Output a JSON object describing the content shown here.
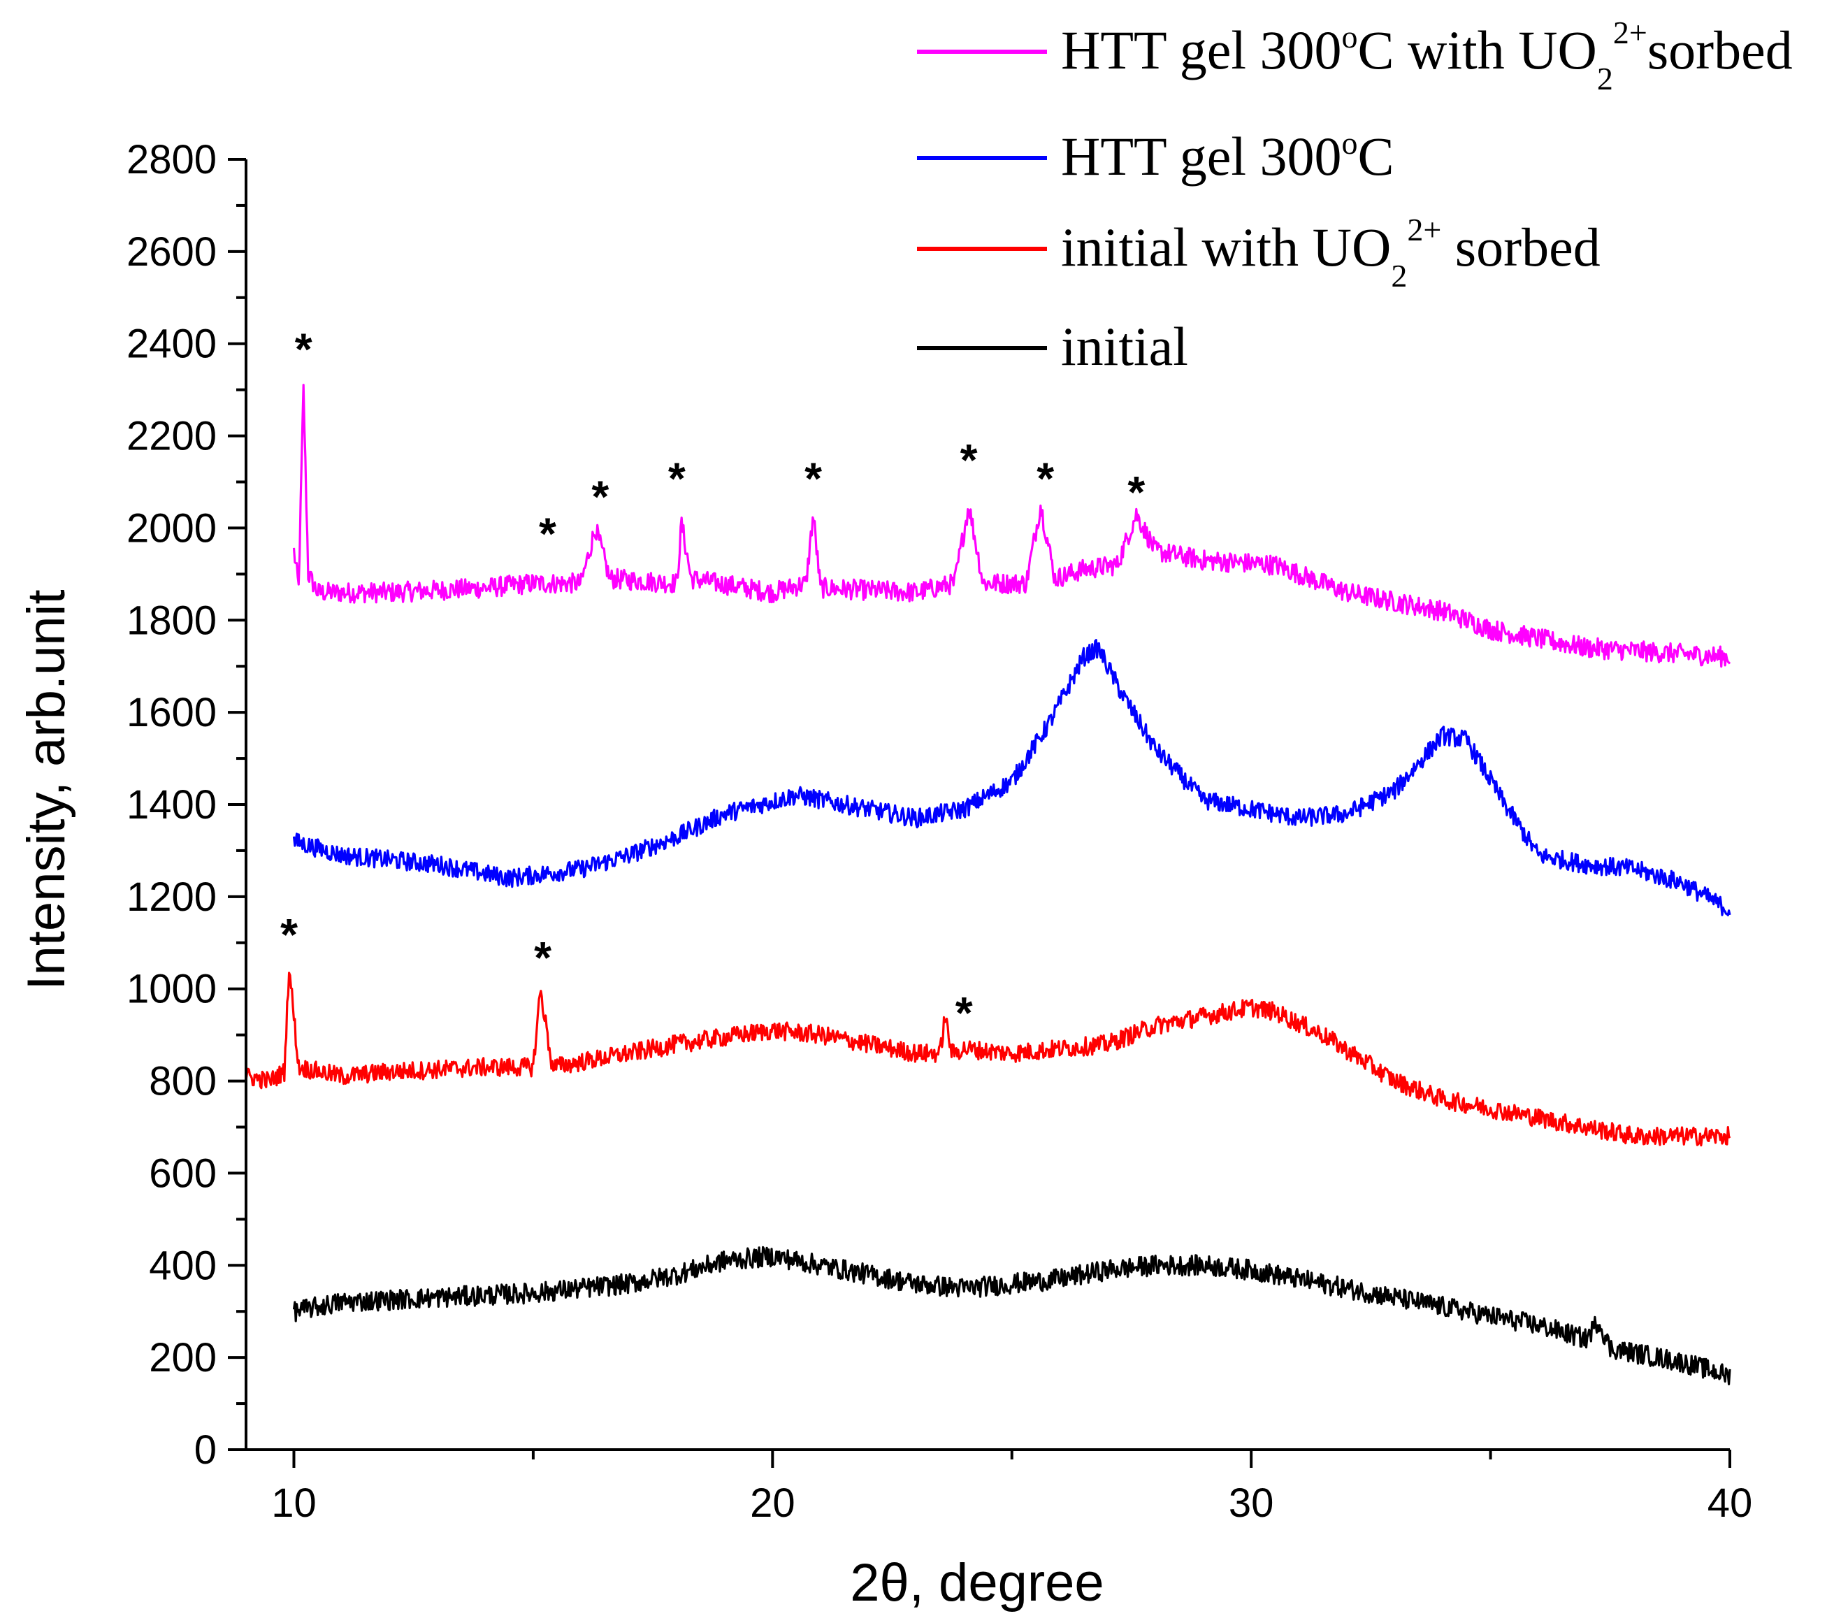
{
  "chart_data": {
    "type": "line",
    "xlabel": "2θ, degree",
    "ylabel": "Intensity, arb.unit",
    "xlim": [
      9,
      40
    ],
    "ylim": [
      0,
      2800
    ],
    "x_ticks": [
      10,
      20,
      30,
      40
    ],
    "y_ticks": [
      0,
      200,
      400,
      600,
      800,
      1000,
      1200,
      1400,
      1600,
      1800,
      2000,
      2200,
      2400,
      2600,
      2800
    ],
    "series": [
      {
        "name": "HTT gel 300oC with UO22+sorbed",
        "legend": {
          "main": "HTT gel 300",
          "deg": "o",
          "after_deg": "C with UO",
          "sub": "2",
          "sup": "2+",
          "tail": "sorbed"
        },
        "color": "#ff00ff",
        "x_start": 10,
        "noise": 22,
        "points": [
          [
            10,
            1950
          ],
          [
            10.1,
            1870
          ],
          [
            10.2,
            2300
          ],
          [
            10.3,
            1900
          ],
          [
            10.5,
            1860
          ],
          [
            12,
            1860
          ],
          [
            14,
            1870
          ],
          [
            15,
            1880
          ],
          [
            16,
            1880
          ],
          [
            16.3,
            2000
          ],
          [
            16.6,
            1890
          ],
          [
            18,
            1880
          ],
          [
            18.1,
            2010
          ],
          [
            18.3,
            1890
          ],
          [
            20,
            1860
          ],
          [
            20.7,
            1880
          ],
          [
            20.85,
            2030
          ],
          [
            21,
            1870
          ],
          [
            23,
            1860
          ],
          [
            23.8,
            1880
          ],
          [
            24.1,
            2050
          ],
          [
            24.4,
            1880
          ],
          [
            25.3,
            1880
          ],
          [
            25.6,
            2050
          ],
          [
            25.9,
            1890
          ],
          [
            26.5,
            1910
          ],
          [
            27.2,
            1920
          ],
          [
            27.6,
            2030
          ],
          [
            28,
            1950
          ],
          [
            29,
            1930
          ],
          [
            30.5,
            1920
          ],
          [
            32,
            1860
          ],
          [
            34,
            1820
          ],
          [
            35,
            1780
          ],
          [
            37,
            1740
          ],
          [
            40,
            1720
          ]
        ]
      },
      {
        "name": "HTT gel 300oC",
        "legend": {
          "main": "HTT gel 300",
          "deg": "o",
          "after_deg": "C",
          "sub": "",
          "sup": "",
          "tail": ""
        },
        "color": "#0000ff",
        "x_start": 10,
        "noise": 20,
        "points": [
          [
            10,
            1320
          ],
          [
            11,
            1290
          ],
          [
            13,
            1270
          ],
          [
            14.5,
            1240
          ],
          [
            16,
            1260
          ],
          [
            17,
            1290
          ],
          [
            18,
            1330
          ],
          [
            19,
            1380
          ],
          [
            20.5,
            1420
          ],
          [
            22,
            1390
          ],
          [
            23,
            1370
          ],
          [
            24,
            1390
          ],
          [
            25,
            1450
          ],
          [
            25.8,
            1580
          ],
          [
            26.5,
            1720
          ],
          [
            26.8,
            1740
          ],
          [
            27.3,
            1640
          ],
          [
            28,
            1520
          ],
          [
            29,
            1410
          ],
          [
            30,
            1390
          ],
          [
            31,
            1370
          ],
          [
            32,
            1380
          ],
          [
            33,
            1430
          ],
          [
            34,
            1550
          ],
          [
            34.5,
            1540
          ],
          [
            35.3,
            1400
          ],
          [
            36,
            1290
          ],
          [
            37,
            1270
          ],
          [
            38,
            1260
          ],
          [
            39,
            1230
          ],
          [
            40,
            1170
          ]
        ]
      },
      {
        "name": "initial with UO22+ sorbed",
        "legend": {
          "main": "initial with UO",
          "deg": "",
          "after_deg": "",
          "sub": "2",
          "sup": "2+",
          "tail": " sorbed"
        },
        "color": "#ff0000",
        "x_start": 9,
        "noise": 20,
        "points": [
          [
            9,
            810
          ],
          [
            9.5,
            800
          ],
          [
            9.8,
            820
          ],
          [
            9.9,
            1050
          ],
          [
            10.1,
            830
          ],
          [
            11,
            810
          ],
          [
            12,
            820
          ],
          [
            14,
            830
          ],
          [
            15,
            830
          ],
          [
            15.15,
            1000
          ],
          [
            15.4,
            830
          ],
          [
            17,
            860
          ],
          [
            18,
            880
          ],
          [
            20,
            910
          ],
          [
            21,
            900
          ],
          [
            22,
            880
          ],
          [
            23,
            860
          ],
          [
            23.5,
            860
          ],
          [
            23.6,
            940
          ],
          [
            23.75,
            860
          ],
          [
            24,
            870
          ],
          [
            25,
            860
          ],
          [
            26,
            870
          ],
          [
            27,
            880
          ],
          [
            28,
            920
          ],
          [
            29,
            940
          ],
          [
            30,
            960
          ],
          [
            30.5,
            950
          ],
          [
            31.5,
            900
          ],
          [
            33,
            800
          ],
          [
            34,
            760
          ],
          [
            36,
            720
          ],
          [
            38,
            680
          ],
          [
            40,
            680
          ]
        ]
      },
      {
        "name": "initial",
        "legend": {
          "main": "initial",
          "deg": "",
          "after_deg": "",
          "sub": "",
          "sup": "",
          "tail": ""
        },
        "color": "#000000",
        "x_start": 10,
        "noise": 22,
        "points": [
          [
            10,
            300
          ],
          [
            11,
            320
          ],
          [
            13,
            330
          ],
          [
            15,
            340
          ],
          [
            17,
            360
          ],
          [
            18,
            380
          ],
          [
            19,
            410
          ],
          [
            20,
            420
          ],
          [
            21,
            400
          ],
          [
            22,
            380
          ],
          [
            23,
            360
          ],
          [
            24,
            350
          ],
          [
            25,
            360
          ],
          [
            26,
            370
          ],
          [
            27,
            390
          ],
          [
            28,
            400
          ],
          [
            29,
            400
          ],
          [
            30,
            390
          ],
          [
            31,
            370
          ],
          [
            32,
            350
          ],
          [
            33,
            330
          ],
          [
            34,
            310
          ],
          [
            35,
            290
          ],
          [
            36,
            270
          ],
          [
            37,
            240
          ],
          [
            37.25,
            280
          ],
          [
            37.5,
            220
          ],
          [
            38,
            210
          ],
          [
            39,
            190
          ],
          [
            40,
            160
          ]
        ]
      }
    ],
    "peak_markers": [
      {
        "x": 10.2,
        "y": 2400,
        "label": "*"
      },
      {
        "x": 15.3,
        "y": 2000,
        "label": "*"
      },
      {
        "x": 16.4,
        "y": 2080,
        "label": "*"
      },
      {
        "x": 18.0,
        "y": 2120,
        "label": "*"
      },
      {
        "x": 20.85,
        "y": 2120,
        "label": "*"
      },
      {
        "x": 24.1,
        "y": 2160,
        "label": "*"
      },
      {
        "x": 25.7,
        "y": 2120,
        "label": "*"
      },
      {
        "x": 27.6,
        "y": 2090,
        "label": "*"
      },
      {
        "x": 9.9,
        "y": 1130,
        "label": "*"
      },
      {
        "x": 15.2,
        "y": 1080,
        "label": "*"
      },
      {
        "x": 24.0,
        "y": 960,
        "label": "*"
      }
    ]
  }
}
